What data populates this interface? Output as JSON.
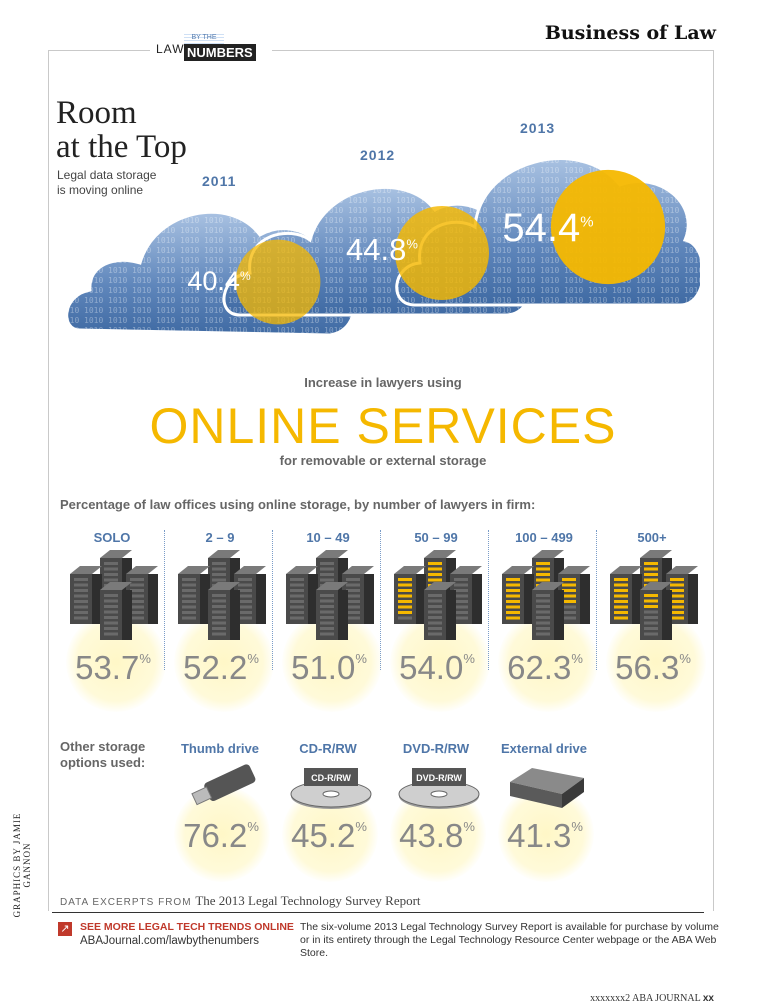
{
  "header": {
    "logo_law": "LAW",
    "logo_by": "BY THE",
    "logo_numbers": "NUMBERS",
    "section": "Business of Law"
  },
  "headline": {
    "title_line1": "Room",
    "title_line2": "at the Top",
    "subtitle_line1": "Legal data storage",
    "subtitle_line2": "is moving online"
  },
  "tagline": {
    "increase": "Increase in lawyers using",
    "big": "ONLINE SERVICES",
    "for": "for removable or external storage"
  },
  "colors": {
    "accent": "#f5b800",
    "cloud": "#6e93c4",
    "label_blue": "#4f76a8",
    "glow": "#fff6c2"
  },
  "chart_data": [
    {
      "type": "bar",
      "categories": [
        "2011",
        "2012",
        "2013"
      ],
      "values": [
        40.4,
        44.8,
        54.4
      ],
      "unit": "%"
    },
    {
      "type": "bar",
      "title": "Percentage of law offices using online storage, by number of lawyers in firm:",
      "categories": [
        "SOLO",
        "2 – 9",
        "10 – 49",
        "50 – 99",
        "100 – 499",
        "500+"
      ],
      "values": [
        53.7,
        52.2,
        51.0,
        54.0,
        62.3,
        56.3
      ],
      "unit": "%"
    },
    {
      "type": "bar",
      "title": "Other storage options used:",
      "categories": [
        "Thumb drive",
        "CD-R/RW",
        "DVD-R/RW",
        "External drive"
      ],
      "values": [
        76.2,
        45.2,
        43.8,
        41.3
      ],
      "unit": "%"
    }
  ],
  "labels": {
    "pct_sym": "%",
    "v2011": "40.4",
    "v2012": "44.8",
    "v2013": "54.4",
    "sizes": [
      "53.7",
      "52.2",
      "51.0",
      "54.0",
      "62.3",
      "56.3"
    ],
    "other_line1": "Other storage",
    "other_line2": "options used:",
    "storage": [
      "76.2",
      "45.2",
      "43.8",
      "41.3"
    ],
    "cd_text": "CD-R/RW",
    "dvd_text": "DVD-R/RW"
  },
  "footer": {
    "excerpt_prefix": "DATA EXCERPTS FROM",
    "excerpt_title": "The 2013 Legal Technology Survey Report",
    "see_more": "SEE MORE LEGAL TECH TRENDS ONLINE",
    "url": "ABAJournal.com/lawbythenumbers",
    "note": "The six-volume 2013 Legal Technology Survey Report is available for purchase by volume or in its entirety through the Legal Technology Resource Center webpage or the ABA Web Store.",
    "credit": "GRAPHICS BY JAMIE GANNON",
    "folio_left": "xxxxxxx2 ABA JOURNAL",
    "folio_right": "xx"
  }
}
